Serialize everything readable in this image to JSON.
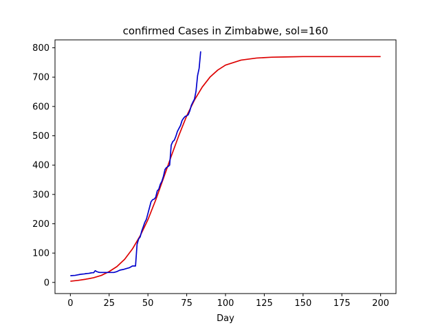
{
  "chart_data": {
    "type": "line",
    "title": "confirmed Cases in Zimbabwe, sol=160",
    "xlabel": "Day",
    "ylabel": "",
    "xlim": [
      -9.9,
      209.9
    ],
    "ylim": [
      -38,
      827
    ],
    "xticks": [
      0,
      25,
      50,
      75,
      100,
      125,
      150,
      175,
      200
    ],
    "yticks": [
      0,
      100,
      200,
      300,
      400,
      500,
      600,
      700,
      800
    ],
    "grid": false,
    "legend": "none",
    "series": [
      {
        "color": "#0000cc",
        "x": [
          0,
          3,
          5,
          6,
          7,
          9,
          10,
          12,
          13,
          14,
          15,
          16,
          17,
          18,
          19,
          20,
          22,
          25,
          28,
          30,
          32,
          34,
          36,
          38,
          40,
          41,
          42,
          43,
          44,
          45,
          46,
          47,
          48,
          49,
          50,
          51,
          52,
          53,
          54,
          55,
          56,
          57,
          58,
          59,
          60,
          61,
          62,
          63,
          64,
          65,
          66,
          67,
          68,
          69,
          70,
          71,
          72,
          73,
          74,
          75,
          76,
          77,
          78,
          79,
          80,
          81,
          82,
          83,
          84
        ],
        "y": [
          23,
          24,
          26,
          27,
          28,
          29,
          30,
          31,
          32,
          33,
          33,
          40,
          37,
          35,
          34,
          34,
          34,
          34,
          34,
          37,
          42,
          44,
          47,
          50,
          56,
          56,
          56,
          130,
          148,
          155,
          175,
          190,
          205,
          215,
          235,
          255,
          275,
          282,
          284,
          290,
          312,
          318,
          335,
          345,
          362,
          385,
          392,
          395,
          400,
          468,
          480,
          485,
          498,
          515,
          525,
          535,
          552,
          560,
          566,
          568,
          572,
          585,
          604,
          615,
          625,
          652,
          705,
          730,
          788
        ]
      },
      {
        "color": "#dd0000",
        "x": [
          0,
          5,
          10,
          15,
          20,
          25,
          30,
          35,
          40,
          45,
          50,
          55,
          60,
          65,
          70,
          75,
          80,
          85,
          90,
          95,
          100,
          110,
          120,
          130,
          140,
          150,
          160,
          170,
          180,
          190,
          200
        ],
        "y": [
          4,
          7,
          11,
          16,
          24,
          37,
          54,
          79,
          114,
          159,
          214,
          281,
          355,
          430,
          502,
          568,
          622,
          666,
          700,
          724,
          741,
          758,
          765,
          768,
          769,
          770,
          770,
          770,
          770,
          770,
          770
        ]
      }
    ]
  }
}
